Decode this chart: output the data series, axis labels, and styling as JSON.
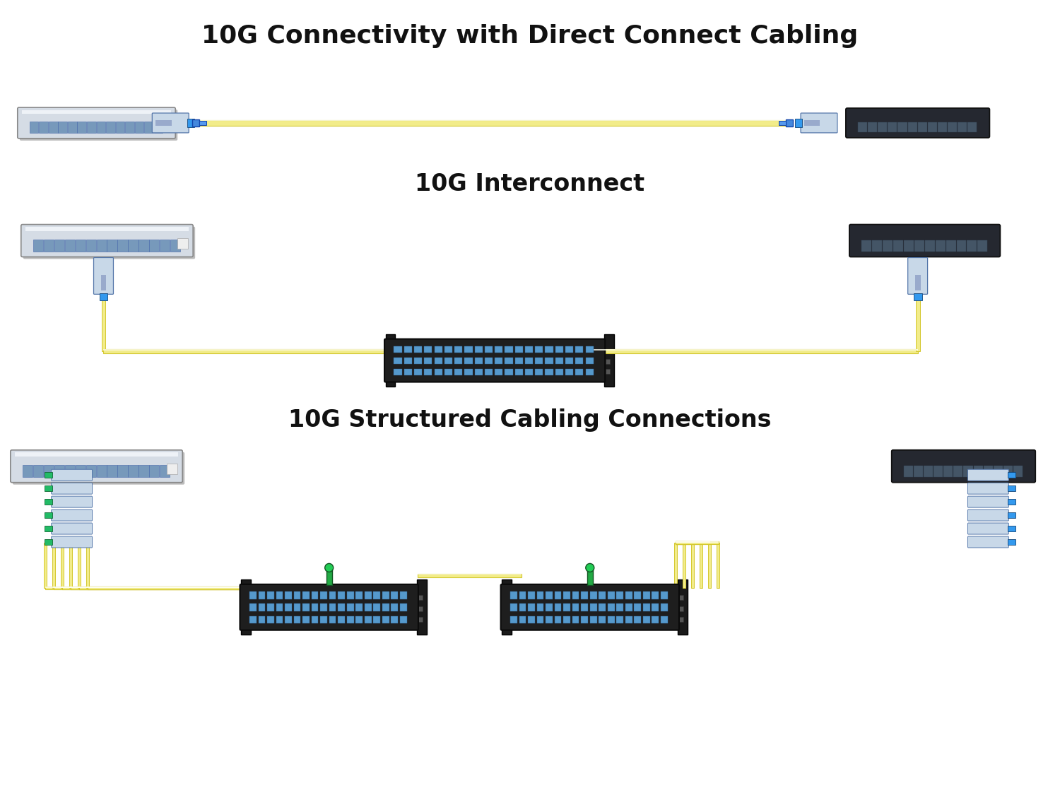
{
  "title": "10G Connectivity with Direct Connect Cabling",
  "section2_title": "10G Interconnect",
  "section3_title": "10G Structured Cabling Connections",
  "bg_color": "#ffffff",
  "title_fontsize": 26,
  "section_fontsize": 24,
  "cable_yellow": "#f2ec8a",
  "cable_yellow_dark": "#d4c830",
  "cable_yellow_light": "#fefef0",
  "connector_blue": "#3377cc",
  "switch_light": "#d5dce5",
  "switch_dark": "#252830",
  "port_color": "#7799bb",
  "port_dark": "#4466aa",
  "sfp_body": "#c8d8e8",
  "sfp_tip_blue": "#3399ee",
  "sfp_tip_green": "#22bb66",
  "green_conn": "#22aa44",
  "rack_ear": "#1a1a1a"
}
